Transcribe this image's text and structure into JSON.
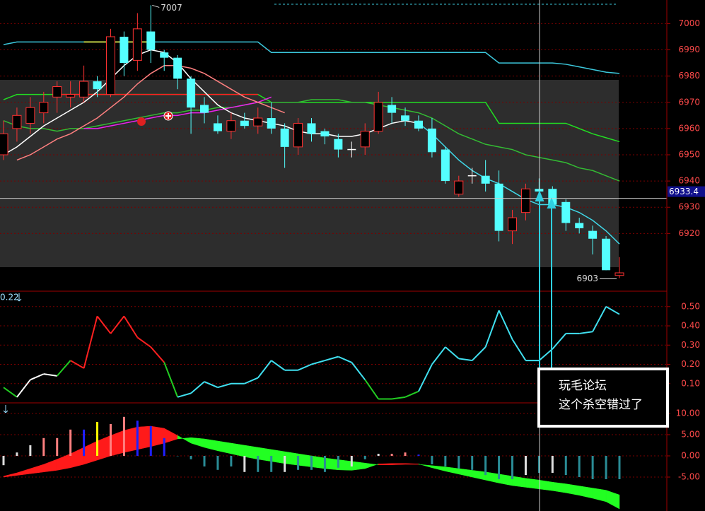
{
  "chart_data": [
    {
      "type": "candlestick",
      "open": [
        6950,
        6960,
        6962,
        6966,
        6972,
        6972,
        6972,
        6978,
        6973,
        6995,
        6986,
        6997,
        6989,
        6987,
        6979,
        6969,
        6962,
        6959,
        6963,
        6961,
        6964,
        6960,
        6953,
        6962,
        6959,
        6956,
        6952,
        6953,
        6959,
        6969,
        6965,
        6963,
        6960,
        6952,
        6935,
        6942,
        6942,
        6939,
        6921,
        6928,
        6937,
        6937,
        6932,
        6924,
        6921,
        6918,
        6904
      ],
      "high": [
        6963,
        6968,
        6972,
        6974,
        6978,
        6978,
        6984,
        6980,
        6998,
        6997,
        7004,
        7007,
        6990,
        6988,
        6980,
        6972,
        6965,
        6966,
        6966,
        6968,
        6970,
        6962,
        6964,
        6964,
        6960,
        6958,
        6955,
        6962,
        6974,
        6972,
        6968,
        6965,
        6964,
        6953,
        6942,
        6945,
        6948,
        6944,
        6929,
        6939,
        6941,
        6938,
        6933,
        6926,
        6923,
        6919,
        6911
      ],
      "low": [
        6948,
        6955,
        6958,
        6962,
        6966,
        6968,
        6970,
        6972,
        6972,
        6980,
        6982,
        6985,
        6982,
        6975,
        6958,
        6962,
        6958,
        6956,
        6960,
        6958,
        6958,
        6945,
        6950,
        6955,
        6954,
        6949,
        6949,
        6950,
        6958,
        6962,
        6961,
        6959,
        6949,
        6939,
        6934,
        6939,
        6936,
        6917,
        6916,
        6925,
        6934,
        6930,
        6921,
        6920,
        6912,
        6906,
        6903
      ],
      "close": [
        6958,
        6965,
        6968,
        6970,
        6976,
        6973,
        6978,
        6975,
        6995,
        6985,
        6998,
        6990,
        6987,
        6979,
        6968,
        6966,
        6959,
        6963,
        6961,
        6964,
        6960,
        6953,
        6962,
        6958,
        6957,
        6952,
        6952,
        6959,
        6970,
        6966,
        6963,
        6960,
        6951,
        6940,
        6940,
        6942,
        6939,
        6921,
        6926,
        6937,
        6936,
        6931,
        6924,
        6922,
        6918,
        6906,
        6905
      ],
      "up_color": "#ff3232",
      "down_color": "#54ffff",
      "doji_color": "#ffffff",
      "series": [
        {
          "color": "#3cc8dc",
          "values": [
            6992,
            6993,
            6993,
            6993,
            6993,
            6993,
            6993,
            6993,
            6993,
            6993,
            6993,
            6993,
            6993,
            6993,
            6993,
            6993,
            6993,
            6993,
            6993,
            6993,
            6989,
            6989,
            6989,
            6989,
            6989,
            6989,
            6989,
            6989,
            6989,
            6989,
            6989,
            6989,
            6989,
            6989,
            6989,
            6989,
            6989,
            6985,
            6985,
            6985,
            6985,
            6985,
            6984.5,
            6983.5,
            6982.5,
            6981.5,
            6981
          ]
        },
        {
          "color": "#22dd22",
          "values": [
            6971,
            6973,
            6973,
            6973,
            6973,
            6973,
            6973,
            6973,
            6973,
            6973,
            6973,
            6973,
            6973,
            6973,
            6973,
            6973,
            6973,
            6973,
            6973,
            6973,
            6970,
            6970,
            6970,
            6970,
            6970,
            6970,
            6970,
            6970,
            6970,
            6970,
            6970,
            6970,
            6970,
            6970,
            6970,
            6970,
            6970,
            6962,
            6962,
            6962,
            6962,
            6962,
            6962,
            6960,
            6958,
            6956.5,
            6955
          ]
        },
        {
          "color": "#33bb33",
          "values": [
            6963,
            6961,
            6960,
            6960,
            6959,
            6960,
            6960,
            6961,
            6962,
            6963,
            6964,
            6965,
            6966,
            6966,
            6967,
            6967,
            6968,
            6968,
            6969,
            6970,
            6970,
            6970,
            6970,
            6971,
            6971,
            6971,
            6970,
            6970,
            6969,
            6968,
            6967,
            6966,
            6964,
            6961,
            6958,
            6956,
            6954,
            6953,
            6952,
            6950,
            6949,
            6948,
            6947,
            6945,
            6944,
            6942,
            6940
          ]
        },
        {
          "color": "#ee22ee",
          "values": [
            null,
            null,
            null,
            null,
            null,
            null,
            6960,
            6960,
            6961,
            6962,
            6963,
            6964,
            6965,
            6965,
            6966,
            6966,
            6967,
            6968,
            6969,
            6970,
            6972,
            null,
            null,
            null,
            null,
            null,
            null,
            null,
            null,
            null,
            null,
            null,
            null,
            null,
            null,
            null,
            null,
            null,
            null,
            null,
            null,
            null,
            null,
            null,
            null,
            null,
            null
          ]
        },
        {
          "color": "#ff2020",
          "values": [
            null,
            null,
            null,
            null,
            6973,
            6973,
            6973,
            6973,
            6973,
            6973,
            6973,
            6973,
            6973,
            6973,
            6973,
            6973,
            6973,
            6973,
            6973,
            6973,
            null,
            null,
            null,
            null,
            null,
            null,
            null,
            null,
            null,
            null,
            null,
            null,
            null,
            null,
            null,
            null,
            null,
            null,
            null,
            null,
            null,
            null,
            null,
            null,
            null,
            null,
            null
          ]
        },
        {
          "color": "#ffff40",
          "values": [
            null,
            null,
            null,
            null,
            null,
            null,
            6993,
            6993,
            6993,
            6993,
            6993,
            6993,
            null,
            null,
            null,
            null,
            null,
            null,
            null,
            null,
            null,
            null,
            null,
            null,
            null,
            null,
            null,
            null,
            null,
            null,
            null,
            null,
            null,
            null,
            null,
            null,
            null,
            null,
            null,
            null,
            null,
            null,
            null,
            null,
            null,
            null,
            null
          ]
        },
        {
          "color": "#ff8080",
          "values": [
            null,
            6948,
            6950,
            6953,
            6956,
            6958,
            6961,
            6964,
            6968,
            6972,
            6977,
            6981,
            6984,
            6984,
            6983,
            6981,
            6978,
            6975,
            6972,
            6970,
            6968,
            6966,
            null,
            null,
            null,
            null,
            null,
            null,
            null,
            null,
            null,
            null,
            null,
            null,
            null,
            null,
            null,
            null,
            null,
            null,
            null,
            null,
            null,
            null,
            null,
            null,
            null
          ]
        },
        {
          "color": "#ffffff",
          "values": [
            6950,
            6953,
            6957,
            6961,
            6964,
            6967,
            6970,
            6974,
            6979,
            6984,
            6988,
            6990,
            6989,
            6985,
            6979,
            6974,
            6969,
            6966,
            6964,
            6963,
            6962,
            6961,
            6959,
            6958,
            6958,
            6957,
            6957,
            6958,
            6960,
            6962,
            6963,
            6962,
            null,
            null,
            null,
            null,
            null,
            null,
            null,
            null,
            null,
            null,
            null,
            null,
            null,
            null,
            null
          ]
        },
        {
          "color": "#40d8e8",
          "values": [
            null,
            null,
            null,
            null,
            null,
            null,
            null,
            null,
            null,
            null,
            null,
            null,
            null,
            null,
            null,
            null,
            null,
            null,
            null,
            null,
            null,
            null,
            null,
            null,
            null,
            null,
            null,
            null,
            null,
            null,
            null,
            6962,
            6958,
            6953,
            6948,
            6944,
            6941,
            6939,
            6936,
            6933,
            6931,
            6931,
            6930,
            6928,
            6925,
            6921,
            6916
          ]
        }
      ],
      "extreme_labels": [
        7007,
        6903
      ],
      "crosshair_price": 6933.4,
      "ylim": [
        6898,
        7009
      ],
      "yticks": [
        6920,
        6930,
        6940,
        6950,
        6960,
        6970,
        6980,
        6990,
        7000
      ],
      "grid": true
    },
    {
      "type": "line",
      "readout": 0.22,
      "values": [
        0.08,
        0.03,
        0.12,
        0.15,
        0.14,
        0.22,
        0.18,
        0.45,
        0.36,
        0.45,
        0.34,
        0.29,
        0.21,
        0.03,
        0.05,
        0.11,
        0.08,
        0.1,
        0.1,
        0.13,
        0.22,
        0.17,
        0.17,
        0.2,
        0.22,
        0.24,
        0.21,
        0.12,
        0.02,
        0.02,
        0.03,
        0.06,
        0.2,
        0.29,
        0.23,
        0.22,
        0.29,
        0.48,
        0.33,
        0.22,
        0.22,
        0.28,
        0.36,
        0.36,
        0.37,
        0.5,
        0.46
      ],
      "colors": [
        "#22cc22",
        "#22cc22",
        "#ffffff",
        "#ffffff",
        "#ffffff",
        "#22cc22",
        "#ff2020",
        "#ff2020",
        "#ff2020",
        "#ff2020",
        "#ff2020",
        "#ff2020",
        "#ff2020",
        "#22cc22",
        "#40e0f0",
        "#40e0f0",
        "#40e0f0",
        "#40e0f0",
        "#40e0f0",
        "#40e0f0",
        "#40e0f0",
        "#40e0f0",
        "#40e0f0",
        "#40e0f0",
        "#40e0f0",
        "#40e0f0",
        "#40e0f0",
        "#40e0f0",
        "#22cc22",
        "#22cc22",
        "#22cc22",
        "#22cc22",
        "#40e0f0",
        "#40e0f0",
        "#40e0f0",
        "#40e0f0",
        "#40e0f0",
        "#40e0f0",
        "#40e0f0",
        "#40e0f0",
        "#40e0f0",
        "#40e0f0",
        "#40e0f0",
        "#40e0f0",
        "#40e0f0",
        "#40e0f0",
        "#40e0f0"
      ],
      "ylim": [
        0,
        0.58
      ],
      "yticks": [
        {
          "value": 0.1,
          "label": "0.10"
        },
        {
          "value": 0.2,
          "label": "0.20"
        },
        {
          "value": 0.3,
          "label": "0.30"
        },
        {
          "value": 0.4,
          "label": "0.40"
        },
        {
          "value": 0.5,
          "label": "0.50"
        }
      ],
      "grid": true
    },
    {
      "type": "macd",
      "values": [
        -2.2,
        0.8,
        2.5,
        4.2,
        4.2,
        6.2,
        6.2,
        8,
        7.5,
        9.2,
        8.3,
        7,
        4.2,
        0,
        -0.8,
        -2.5,
        -3.3,
        -2.5,
        -3.8,
        -3.8,
        -3.8,
        -3.8,
        -3.3,
        -3.3,
        -3.8,
        -2.8,
        -2.5,
        -0.8,
        0.5,
        0.5,
        0.8,
        0.3,
        -2,
        -2.5,
        -3,
        -3.3,
        -4.5,
        -5.5,
        -5.5,
        -4.5,
        -4,
        -4,
        -4.5,
        -5,
        -5.5,
        -5.5,
        -5.5
      ],
      "bar_colors": [
        "#dddddd",
        "#dddddd",
        "#dddddd",
        "#ff8080",
        "#ff8080",
        "#ff8080",
        "#2020ff",
        "#ffff00",
        "#ff8080",
        "#ff8080",
        "#2020ff",
        "#2020ff",
        "#2020ff",
        "#2a8c96",
        "#2a8c96",
        "#2a8c96",
        "#2a8c96",
        "#2a8c96",
        "#dddddd",
        "#2a8c96",
        "#2a8c96",
        "#dddddd",
        "#2a8c96",
        "#2a8c96",
        "#2a8c96",
        "#2a8c96",
        "#dddddd",
        "#2a8c96",
        "#dddddd",
        "#ff8080",
        "#ff8080",
        "#2020ff",
        "#2a8c96",
        "#2a8c96",
        "#2a8c96",
        "#2a8c96",
        "#2a8c96",
        "#2a8c96",
        "#2a8c96",
        "#dddddd",
        "#2a8c96",
        "#dddddd",
        "#2a8c96",
        "#2a8c96",
        "#2a8c96",
        "#2a8c96",
        "#2a8c96"
      ],
      "series": [
        {
          "values": [
            -4.8,
            -4.0,
            -3.0,
            -2.0,
            -0.8,
            0.5,
            2.0,
            3.5,
            4.8,
            6.0,
            6.8,
            7.0,
            6.5,
            4.8,
            3.0,
            2.0,
            1.2,
            0.5,
            -0.2,
            -0.8,
            -1.3,
            -1.8,
            -2.2,
            -2.6,
            -3.0,
            -3.3,
            -3.4,
            -3.0,
            -1.9,
            -1.8,
            -1.8,
            -1.9,
            -2.8,
            -3.6,
            -4.3,
            -5.0,
            -5.7,
            -6.4,
            -7.0,
            -7.4,
            -7.8,
            -8.2,
            -8.7,
            -9.3,
            -10.0,
            -10.8,
            -12.5
          ]
        },
        {
          "values": [
            -5.0,
            -4.6,
            -4.2,
            -3.8,
            -3.4,
            -2.8,
            -2.0,
            -1.0,
            0.0,
            0.8,
            1.5,
            2.2,
            3.0,
            4.0,
            4.3,
            4.0,
            3.5,
            3.0,
            2.5,
            2.0,
            1.5,
            1.0,
            0.5,
            0.0,
            -0.5,
            -0.9,
            -1.3,
            -1.7,
            -2.1,
            -2.1,
            -2.0,
            -2.0,
            -2.3,
            -2.6,
            -3.0,
            -3.4,
            -3.8,
            -4.3,
            -4.8,
            -5.3,
            -5.7,
            -6.2,
            -6.6,
            -7.1,
            -7.6,
            -8.1,
            -9.2
          ]
        }
      ],
      "up_color": "#ff1a1a",
      "down_color": "#22ff22",
      "ylim": [
        -13,
        12.5
      ],
      "yticks": [
        {
          "value": -5,
          "label": "-5.00"
        },
        {
          "value": 0,
          "label": "0.00"
        },
        {
          "value": 5,
          "label": "5.00"
        },
        {
          "value": 10,
          "label": "10.00"
        }
      ],
      "grid": true
    }
  ],
  "note": {
    "lines": [
      "玩毛论坛",
      "这个杀空错过了"
    ]
  }
}
